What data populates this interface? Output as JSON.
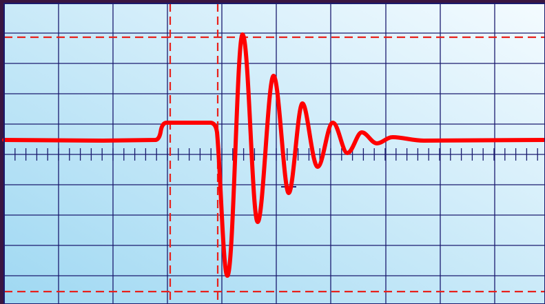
{
  "colors": {
    "bezel": "#3a1540",
    "screen_top": "#f4fbff",
    "screen_bottom": "#9fd8f2",
    "grid": "#1a1a6e",
    "trace": "#ff0000",
    "cursor": "#e8201a"
  },
  "scope": {
    "graticule": {
      "vertical_divisions": 10,
      "horizontal_divisions": 10,
      "minor_ticks_per_division": 5
    },
    "cursors": {
      "vertical": 2,
      "horizontal": 2,
      "style": "dashed"
    },
    "waveform": {
      "shape": "baseline, step up, then damped oscillation returning to baseline",
      "color": "trace"
    }
  }
}
